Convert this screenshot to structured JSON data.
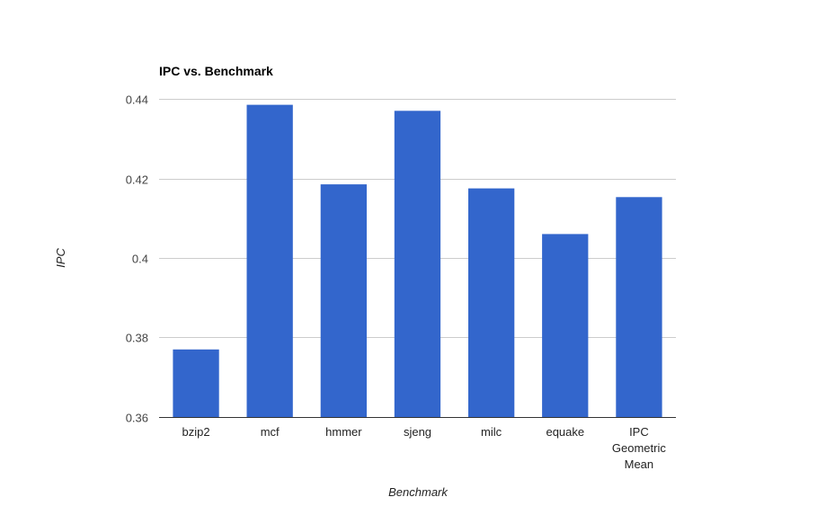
{
  "chart_data": {
    "type": "bar",
    "title": "IPC vs. Benchmark",
    "xlabel": "Benchmark",
    "ylabel": "IPC",
    "ylim": [
      0.36,
      0.44
    ],
    "yticks": [
      0.36,
      0.38,
      0.4,
      0.42,
      0.44
    ],
    "ytick_labels": [
      "0.36",
      "0.38",
      "0.4",
      "0.42",
      "0.44"
    ],
    "grid": true,
    "legend": "none",
    "categories": [
      [
        "bzip2"
      ],
      [
        "mcf"
      ],
      [
        "hmmer"
      ],
      [
        "sjeng"
      ],
      [
        "milc"
      ],
      [
        "equake"
      ],
      [
        "IPC",
        "Geometric",
        "Mean"
      ]
    ],
    "values": [
      0.377,
      0.4385,
      0.4185,
      0.437,
      0.4175,
      0.406,
      0.4153
    ],
    "bar_color": "#3366cc"
  }
}
